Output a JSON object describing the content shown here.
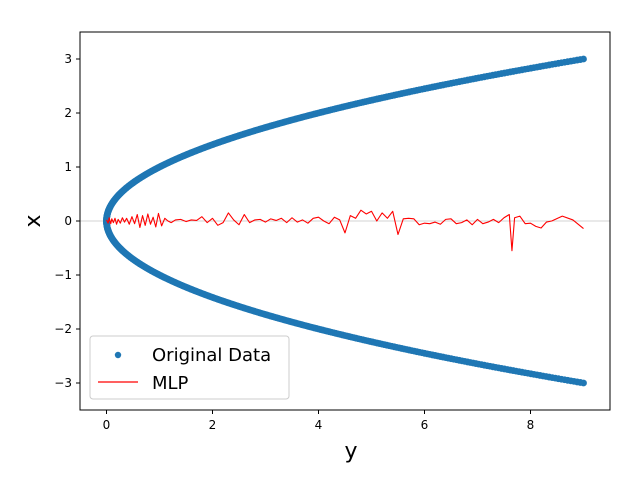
{
  "chart_data": {
    "type": "scatter",
    "xlabel": "y",
    "ylabel": "x",
    "xlim": [
      -0.5,
      9.5
    ],
    "ylim": [
      -3.5,
      3.5
    ],
    "xticks": [
      0,
      2,
      4,
      6,
      8
    ],
    "yticks": [
      -3,
      -2,
      -1,
      0,
      1,
      2,
      3
    ],
    "reference_line": {
      "y": 0,
      "color": "#d3d3d3"
    },
    "legend_position": "lower-left",
    "series": [
      {
        "name": "Original Data",
        "kind": "scatter",
        "color": "#1f77b4",
        "relation": "y = x^2",
        "x_range": [
          -3,
          3
        ]
      },
      {
        "name": "MLP",
        "kind": "line",
        "color": "#ff0000",
        "points": [
          [
            0.0,
            0.02
          ],
          [
            0.03,
            -0.04
          ],
          [
            0.05,
            0.06
          ],
          [
            0.08,
            -0.05
          ],
          [
            0.1,
            0.04
          ],
          [
            0.13,
            -0.03
          ],
          [
            0.16,
            0.05
          ],
          [
            0.19,
            -0.06
          ],
          [
            0.22,
            0.03
          ],
          [
            0.26,
            -0.04
          ],
          [
            0.3,
            0.06
          ],
          [
            0.34,
            -0.02
          ],
          [
            0.38,
            0.05
          ],
          [
            0.43,
            -0.06
          ],
          [
            0.48,
            0.08
          ],
          [
            0.53,
            -0.05
          ],
          [
            0.58,
            0.12
          ],
          [
            0.63,
            -0.12
          ],
          [
            0.68,
            0.1
          ],
          [
            0.73,
            -0.08
          ],
          [
            0.78,
            0.13
          ],
          [
            0.83,
            -0.06
          ],
          [
            0.88,
            0.07
          ],
          [
            0.93,
            -0.11
          ],
          [
            0.98,
            0.14
          ],
          [
            1.04,
            -0.09
          ],
          [
            1.1,
            0.05
          ],
          [
            1.16,
            0.0
          ],
          [
            1.22,
            -0.03
          ],
          [
            1.3,
            0.02
          ],
          [
            1.4,
            0.03
          ],
          [
            1.5,
            -0.01
          ],
          [
            1.6,
            0.02
          ],
          [
            1.7,
            0.01
          ],
          [
            1.8,
            0.08
          ],
          [
            1.9,
            -0.03
          ],
          [
            2.0,
            0.05
          ],
          [
            2.1,
            -0.08
          ],
          [
            2.2,
            -0.03
          ],
          [
            2.3,
            0.15
          ],
          [
            2.4,
            0.02
          ],
          [
            2.5,
            -0.07
          ],
          [
            2.6,
            0.12
          ],
          [
            2.7,
            -0.03
          ],
          [
            2.8,
            0.02
          ],
          [
            2.9,
            0.03
          ],
          [
            3.0,
            -0.02
          ],
          [
            3.1,
            0.04
          ],
          [
            3.2,
            0.01
          ],
          [
            3.3,
            0.05
          ],
          [
            3.4,
            -0.03
          ],
          [
            3.5,
            0.06
          ],
          [
            3.6,
            -0.02
          ],
          [
            3.7,
            0.02
          ],
          [
            3.8,
            -0.04
          ],
          [
            3.9,
            0.05
          ],
          [
            4.0,
            0.07
          ],
          [
            4.1,
            0.0
          ],
          [
            4.2,
            -0.05
          ],
          [
            4.3,
            0.07
          ],
          [
            4.4,
            0.02
          ],
          [
            4.5,
            -0.22
          ],
          [
            4.6,
            0.1
          ],
          [
            4.7,
            0.05
          ],
          [
            4.8,
            0.2
          ],
          [
            4.9,
            0.13
          ],
          [
            5.0,
            0.18
          ],
          [
            5.1,
            0.0
          ],
          [
            5.2,
            0.15
          ],
          [
            5.3,
            0.05
          ],
          [
            5.4,
            0.18
          ],
          [
            5.5,
            -0.25
          ],
          [
            5.6,
            0.04
          ],
          [
            5.7,
            0.05
          ],
          [
            5.8,
            0.04
          ],
          [
            5.9,
            -0.07
          ],
          [
            6.0,
            -0.04
          ],
          [
            6.1,
            -0.05
          ],
          [
            6.2,
            -0.02
          ],
          [
            6.3,
            -0.06
          ],
          [
            6.4,
            0.03
          ],
          [
            6.5,
            0.04
          ],
          [
            6.6,
            -0.05
          ],
          [
            6.7,
            -0.03
          ],
          [
            6.8,
            0.02
          ],
          [
            6.9,
            -0.07
          ],
          [
            7.0,
            0.03
          ],
          [
            7.1,
            -0.05
          ],
          [
            7.2,
            -0.02
          ],
          [
            7.3,
            0.03
          ],
          [
            7.4,
            -0.03
          ],
          [
            7.5,
            0.06
          ],
          [
            7.6,
            0.12
          ],
          [
            7.65,
            -0.55
          ],
          [
            7.7,
            0.06
          ],
          [
            7.8,
            0.09
          ],
          [
            7.9,
            -0.05
          ],
          [
            8.0,
            -0.04
          ],
          [
            8.1,
            -0.1
          ],
          [
            8.2,
            -0.13
          ],
          [
            8.3,
            -0.02
          ],
          [
            8.4,
            0.0
          ],
          [
            8.6,
            0.09
          ],
          [
            8.8,
            0.02
          ],
          [
            9.0,
            -0.14
          ]
        ]
      }
    ]
  }
}
